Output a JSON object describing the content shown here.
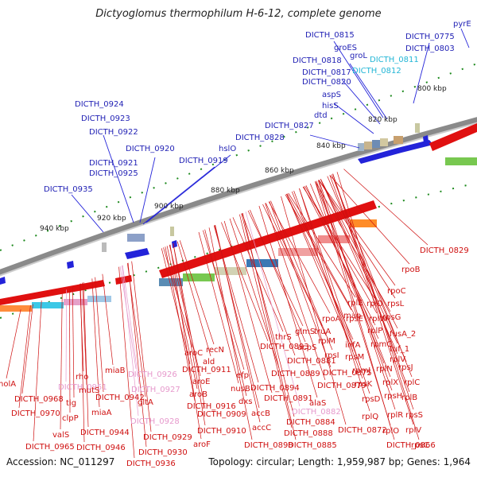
{
  "title": "Dictyoglomus thermophilum H-6-12, complete genome",
  "footer": {
    "accession": "Accession: NC_011297",
    "summary": "Topology: circular; Length: 1,959,987 bp; Genes: 1,964"
  },
  "colors": {
    "backbone": "#8a8a8a",
    "forward_gene": "#2323d9",
    "reverse_gene": "#e01010",
    "tick": "#1e8a1e",
    "label_blue": "#1f1fb4",
    "label_cyan": "#23b6d6",
    "label_red": "#cf1010",
    "label_pink": "#e699cc",
    "axis_text": "#222222"
  },
  "axis_ticks": [
    "800 kbp",
    "820 kbp",
    "840 kbp",
    "860 kbp",
    "880 kbp",
    "900 kbp",
    "920 kbp",
    "940 kbp"
  ],
  "top_labels": [
    {
      "text": "pyrE",
      "color": "blue"
    },
    {
      "text": "DICTH_0775",
      "color": "blue"
    },
    {
      "text": "DICTH_0815",
      "color": "blue"
    },
    {
      "text": "groES",
      "color": "blue"
    },
    {
      "text": "DICTH_0803",
      "color": "blue"
    },
    {
      "text": "groL",
      "color": "blue"
    },
    {
      "text": "DICTH_0811",
      "color": "cyan"
    },
    {
      "text": "DICTH_0818",
      "color": "blue"
    },
    {
      "text": "DICTH_0817",
      "color": "blue"
    },
    {
      "text": "DICTH_0812",
      "color": "cyan"
    },
    {
      "text": "DICTH_0820",
      "color": "blue"
    },
    {
      "text": "aspS",
      "color": "blue"
    },
    {
      "text": "hisS",
      "color": "blue"
    },
    {
      "text": "dtd",
      "color": "blue"
    },
    {
      "text": "DICTH_0827",
      "color": "blue"
    },
    {
      "text": "DICTH_0828",
      "color": "blue"
    },
    {
      "text": "DICTH_0924",
      "color": "blue"
    },
    {
      "text": "DICTH_0923",
      "color": "blue"
    },
    {
      "text": "DICTH_0922",
      "color": "blue"
    },
    {
      "text": "DICTH_0920",
      "color": "blue"
    },
    {
      "text": "DICTH_0921",
      "color": "blue"
    },
    {
      "text": "DICTH_0919",
      "color": "blue"
    },
    {
      "text": "hslO",
      "color": "blue"
    },
    {
      "text": "DICTH_0925",
      "color": "blue"
    },
    {
      "text": "DICTH_0935",
      "color": "blue"
    }
  ],
  "bottom_labels": [
    {
      "text": "DICTH_0829",
      "color": "red"
    },
    {
      "text": "rpoB",
      "color": "red"
    },
    {
      "text": "rpoC",
      "color": "red"
    },
    {
      "text": "rpsL",
      "color": "red"
    },
    {
      "text": "rplE",
      "color": "red"
    },
    {
      "text": "rplD",
      "color": "red"
    },
    {
      "text": "rpsG",
      "color": "red"
    },
    {
      "text": "map",
      "color": "red"
    },
    {
      "text": "rplW",
      "color": "red"
    },
    {
      "text": "rpoA",
      "color": "red"
    },
    {
      "text": "rpsE",
      "color": "red"
    },
    {
      "text": "fusA_2",
      "color": "red"
    },
    {
      "text": "rplP",
      "color": "red"
    },
    {
      "text": "truA",
      "color": "red"
    },
    {
      "text": "glmS",
      "color": "red"
    },
    {
      "text": "rplM",
      "color": "red"
    },
    {
      "text": "tuf_1",
      "color": "red"
    },
    {
      "text": "rpmC",
      "color": "red"
    },
    {
      "text": "infA",
      "color": "red"
    },
    {
      "text": "thrS",
      "color": "red"
    },
    {
      "text": "acpS",
      "color": "red"
    },
    {
      "text": "rplV",
      "color": "red"
    },
    {
      "text": "rpsI",
      "color": "red"
    },
    {
      "text": "rpmJ",
      "color": "red"
    },
    {
      "text": "rpsM",
      "color": "red"
    },
    {
      "text": "rpsJ",
      "color": "red"
    },
    {
      "text": "rplN",
      "color": "red"
    },
    {
      "text": "rplX",
      "color": "red"
    },
    {
      "text": "rplC",
      "color": "red"
    },
    {
      "text": "rpsK",
      "color": "red"
    },
    {
      "text": "rpsH",
      "color": "red"
    },
    {
      "text": "rpsD",
      "color": "red"
    },
    {
      "text": "rplB",
      "color": "red"
    },
    {
      "text": "rplR",
      "color": "red"
    },
    {
      "text": "rpsS",
      "color": "red"
    },
    {
      "text": "rplQ",
      "color": "red"
    },
    {
      "text": "rplO",
      "color": "red"
    },
    {
      "text": "rplV",
      "color": "red"
    },
    {
      "text": "rpsC",
      "color": "red"
    },
    {
      "text": "DICTH_0872",
      "color": "red"
    },
    {
      "text": "DICTH_0866",
      "color": "red"
    },
    {
      "text": "DICTH_0875",
      "color": "red"
    },
    {
      "text": "DICTH_0879",
      "color": "red"
    },
    {
      "text": "DICTH_0881",
      "color": "red"
    },
    {
      "text": "DICTH_0889",
      "color": "red"
    },
    {
      "text": "DICTH_0893",
      "color": "red"
    },
    {
      "text": "DICTH_0894",
      "color": "red"
    },
    {
      "text": "DICTH_0891",
      "color": "red"
    },
    {
      "text": "alaS",
      "color": "red"
    },
    {
      "text": "DICTH_0882",
      "color": "pink"
    },
    {
      "text": "DICTH_0884",
      "color": "red"
    },
    {
      "text": "DICTH_0888",
      "color": "red"
    },
    {
      "text": "DICTH_0885",
      "color": "red"
    },
    {
      "text": "DICTH_0898",
      "color": "red"
    },
    {
      "text": "accC",
      "color": "red"
    },
    {
      "text": "accB",
      "color": "red"
    },
    {
      "text": "dxs",
      "color": "red"
    },
    {
      "text": "nusB",
      "color": "red"
    },
    {
      "text": "efp",
      "color": "red"
    },
    {
      "text": "recN",
      "color": "red"
    },
    {
      "text": "ald",
      "color": "red"
    },
    {
      "text": "aroC",
      "color": "red"
    },
    {
      "text": "DICTH_0911",
      "color": "red"
    },
    {
      "text": "aroE",
      "color": "red"
    },
    {
      "text": "aroB",
      "color": "red"
    },
    {
      "text": "DICTH_0916",
      "color": "red"
    },
    {
      "text": "DICTH_0909",
      "color": "red"
    },
    {
      "text": "DICTH_0910",
      "color": "red"
    },
    {
      "text": "aroF",
      "color": "red"
    },
    {
      "text": "DICTH_0926",
      "color": "pink"
    },
    {
      "text": "DICTH_0927",
      "color": "pink"
    },
    {
      "text": "gltA",
      "color": "red"
    },
    {
      "text": "DICTH_0928",
      "color": "pink"
    },
    {
      "text": "DICTH_0929",
      "color": "red"
    },
    {
      "text": "DICTH_0930",
      "color": "red"
    },
    {
      "text": "DICTH_0936",
      "color": "red"
    },
    {
      "text": "miaB",
      "color": "red"
    },
    {
      "text": "rho",
      "color": "red"
    },
    {
      "text": "DICTH_0951",
      "color": "pink"
    },
    {
      "text": "mutS",
      "color": "red"
    },
    {
      "text": "DICTH_0942",
      "color": "red"
    },
    {
      "text": "tig",
      "color": "red"
    },
    {
      "text": "miaA",
      "color": "red"
    },
    {
      "text": "clpP",
      "color": "red"
    },
    {
      "text": "DICTH_0944",
      "color": "red"
    },
    {
      "text": "DICTH_0946",
      "color": "red"
    },
    {
      "text": "valS",
      "color": "red"
    },
    {
      "text": "DICTH_0968",
      "color": "red"
    },
    {
      "text": "DICTH_0970",
      "color": "red"
    },
    {
      "text": "DICTH_0965",
      "color": "red"
    },
    {
      "text": "holA",
      "color": "red"
    }
  ]
}
